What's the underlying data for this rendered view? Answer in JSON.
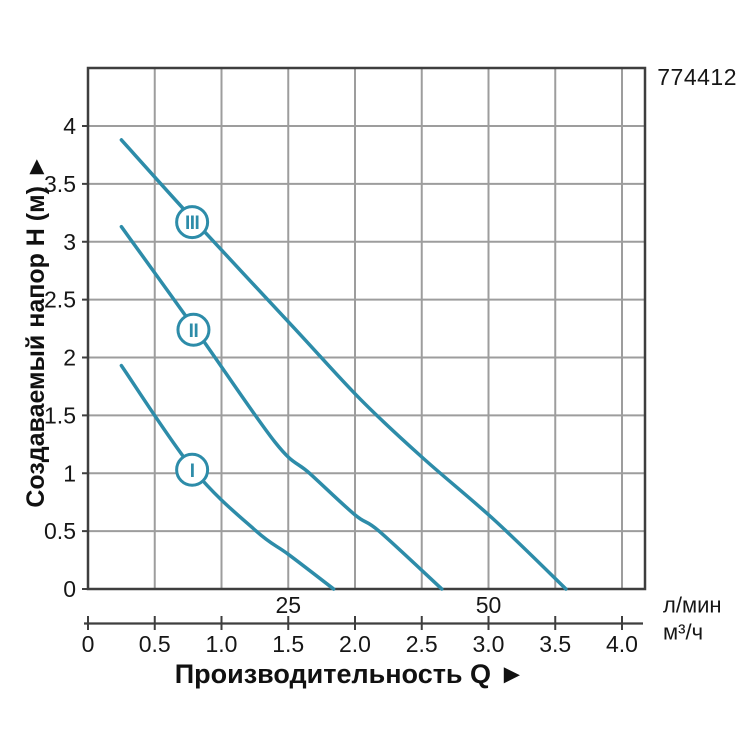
{
  "product_code": "774412",
  "chart_data": {
    "type": "line",
    "title": "",
    "description": "Pump performance curves: head H (m) vs capacity Q for speeds I, II, III",
    "y_axis": {
      "label": "Создаваемый напор H (м) ►",
      "ticks": [
        0,
        0.5,
        1,
        1.5,
        2,
        2.5,
        3,
        3.5,
        4
      ],
      "tick_labels": [
        "0",
        "0.5",
        "1",
        "1.5",
        "2",
        "2.5",
        "3",
        "3.5",
        "4"
      ],
      "range": [
        0,
        4.5
      ],
      "grid": true
    },
    "x_axis": {
      "label": "Производительность Q ►",
      "range_m3h": [
        0,
        4.17
      ],
      "primary_unit": "л/мин",
      "primary_ticks": [
        {
          "label": "25",
          "q_m3h": 1.5
        },
        {
          "label": "50",
          "q_m3h": 3.0
        }
      ],
      "secondary_unit": "м³/ч",
      "secondary_ticks": [
        0,
        0.5,
        1,
        1.5,
        2,
        2.5,
        3,
        3.5,
        4
      ],
      "secondary_tick_labels": [
        "0",
        "0.5",
        "1.0",
        "1.5",
        "2.0",
        "2.5",
        "3.0",
        "3.5",
        "4.0"
      ],
      "grid": true
    },
    "legend_position": "circled-labels-on-curves",
    "series": [
      {
        "name": "I",
        "label_at": [
          0.78,
          1.03
        ],
        "points": [
          [
            0.25,
            1.93
          ],
          [
            0.79,
            1.03
          ],
          [
            1.26,
            0.5
          ],
          [
            1.5,
            0.3
          ],
          [
            1.84,
            0.0
          ]
        ]
      },
      {
        "name": "II",
        "label_at": [
          0.79,
          2.24
        ],
        "points": [
          [
            0.25,
            3.13
          ],
          [
            0.8,
            2.25
          ],
          [
            1.4,
            1.27
          ],
          [
            1.66,
            1.0
          ],
          [
            2.0,
            0.64
          ],
          [
            2.18,
            0.5
          ],
          [
            2.65,
            0.0
          ]
        ]
      },
      {
        "name": "III",
        "label_at": [
          0.78,
          3.17
        ],
        "points": [
          [
            0.25,
            3.88
          ],
          [
            0.79,
            3.19
          ],
          [
            1.54,
            2.26
          ],
          [
            2.04,
            1.64
          ],
          [
            2.5,
            1.14
          ],
          [
            3.04,
            0.6
          ],
          [
            3.58,
            0.0
          ]
        ]
      }
    ],
    "colors": {
      "curve": "#2d8ca9",
      "grid": "#9d9d9d",
      "frame": "#3e3e3e",
      "text": "#161616"
    }
  }
}
